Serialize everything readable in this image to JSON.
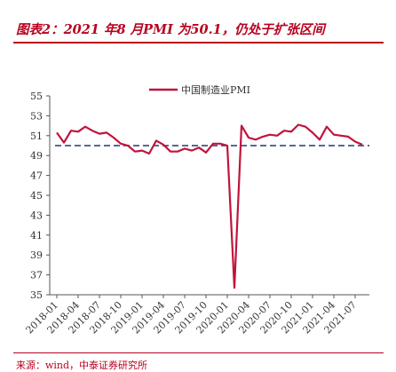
{
  "header": {
    "title": "图表2：2021 年8 月PMI 为50.1，仍处于扩张区间"
  },
  "footer": {
    "source": "来源：wind，中泰证券研究所"
  },
  "colors": {
    "accent": "#b8001f",
    "series_line": "#c0143c",
    "reference_line": "#1f3a6e"
  },
  "chart_data": {
    "type": "line",
    "title": "",
    "xlabel": "",
    "ylabel": "",
    "ylim": [
      35,
      55
    ],
    "yticks": [
      35,
      37,
      39,
      41,
      43,
      45,
      47,
      49,
      51,
      53,
      55
    ],
    "x_tick_labels": [
      "2018-01",
      "2018-04",
      "2018-07",
      "2018-10",
      "2019-01",
      "2019-04",
      "2019-07",
      "2019-10",
      "2020-01",
      "2020-04",
      "2020-07",
      "2020-10",
      "2021-01",
      "2021-04",
      "2021-07"
    ],
    "reference_line": {
      "y": 50,
      "style": "dashed"
    },
    "legend_position": "top",
    "grid": false,
    "series": [
      {
        "name": "中国制造业PMI",
        "x": [
          "2018-01",
          "2018-02",
          "2018-03",
          "2018-04",
          "2018-05",
          "2018-06",
          "2018-07",
          "2018-08",
          "2018-09",
          "2018-10",
          "2018-11",
          "2018-12",
          "2019-01",
          "2019-02",
          "2019-03",
          "2019-04",
          "2019-05",
          "2019-06",
          "2019-07",
          "2019-08",
          "2019-09",
          "2019-10",
          "2019-11",
          "2019-12",
          "2020-01",
          "2020-02",
          "2020-03",
          "2020-04",
          "2020-05",
          "2020-06",
          "2020-07",
          "2020-08",
          "2020-09",
          "2020-10",
          "2020-11",
          "2020-12",
          "2021-01",
          "2021-02",
          "2021-03",
          "2021-04",
          "2021-05",
          "2021-06",
          "2021-07",
          "2021-08"
        ],
        "values": [
          51.3,
          50.3,
          51.5,
          51.4,
          51.9,
          51.5,
          51.2,
          51.3,
          50.8,
          50.2,
          50.0,
          49.4,
          49.5,
          49.2,
          50.5,
          50.1,
          49.4,
          49.4,
          49.7,
          49.5,
          49.8,
          49.3,
          50.2,
          50.2,
          50.0,
          35.7,
          52.0,
          50.8,
          50.6,
          50.9,
          51.1,
          51.0,
          51.5,
          51.4,
          52.1,
          51.9,
          51.3,
          50.6,
          51.9,
          51.1,
          51.0,
          50.9,
          50.4,
          50.1
        ]
      }
    ]
  }
}
